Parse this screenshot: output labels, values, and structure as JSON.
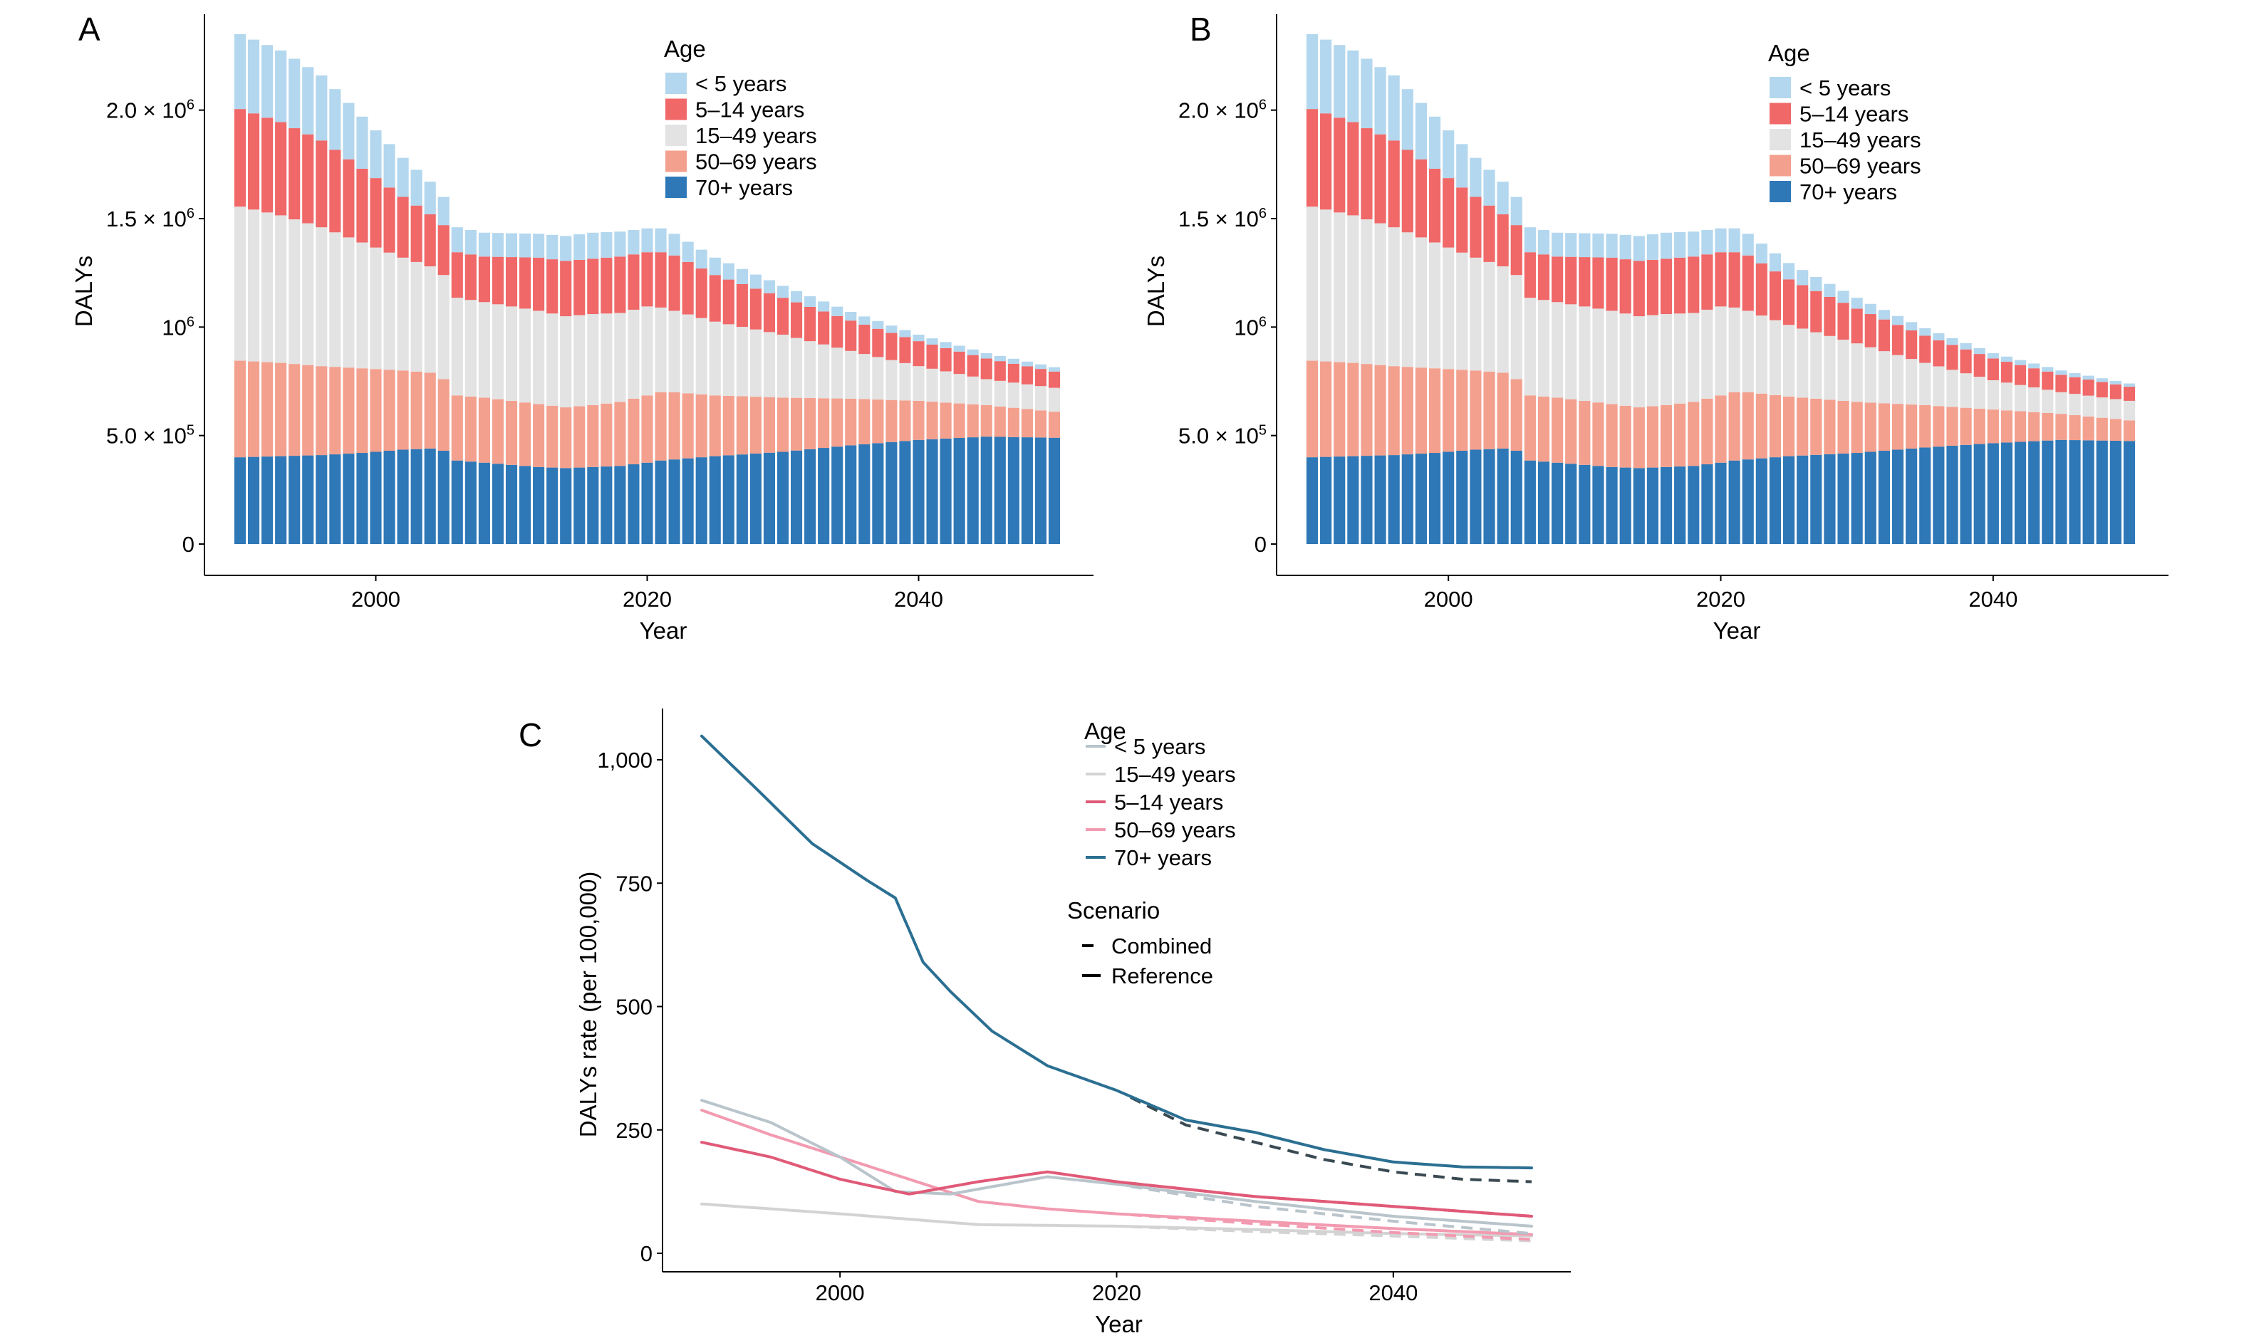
{
  "chart_data": [
    {
      "type": "bar",
      "stacked": true,
      "panel": "A",
      "xlabel": "Year",
      "ylabel": "DALYs",
      "xlim": [
        1990,
        2050
      ],
      "ylim": [
        0,
        2350000
      ],
      "x_ticks": [
        "2000",
        "2020",
        "2040"
      ],
      "y_ticks": [
        "0",
        "5.0 × 10|5",
        "10|6",
        "1.5 × 10|6",
        "2.0 × 10|6"
      ],
      "legend_title": "Age",
      "legend_position": "top-right",
      "legend_labels": [
        "< 5 years",
        "5–14 years",
        "15–49 years",
        "50–69 years",
        "70+ years"
      ],
      "stack_order": [
        "70+ years",
        "50–69 years",
        "15–49 years",
        "5–14 years",
        "< 5 years"
      ],
      "colors": {
        "70+ years": "#2e78b7",
        "50–69 years": "#f4a08e",
        "15–49 years": "#e3e3e3",
        "5–14 years": "#f06868",
        "< 5 years": "#b3d7ee"
      },
      "categories": [
        1990,
        1991,
        1992,
        1993,
        1994,
        1995,
        1996,
        1997,
        1998,
        1999,
        2000,
        2001,
        2002,
        2003,
        2004,
        2005,
        2006,
        2007,
        2008,
        2009,
        2010,
        2011,
        2012,
        2013,
        2014,
        2015,
        2016,
        2017,
        2018,
        2019,
        2020,
        2021,
        2022,
        2023,
        2024,
        2025,
        2026,
        2027,
        2028,
        2029,
        2030,
        2031,
        2032,
        2033,
        2034,
        2035,
        2036,
        2037,
        2038,
        2039,
        2040,
        2041,
        2042,
        2043,
        2044,
        2045,
        2046,
        2047,
        2048,
        2049,
        2050
      ],
      "anchors": {
        "x": [
          1990,
          1993,
          1996,
          1999,
          2002,
          2004,
          2005,
          2006,
          2008,
          2012,
          2014,
          2016,
          2018,
          2020,
          2021,
          2022,
          2025,
          2030,
          2035,
          2040,
          2045,
          2050
        ],
        "70+ years": [
          400000,
          405000,
          410000,
          420000,
          435000,
          440000,
          430000,
          385000,
          375000,
          355000,
          350000,
          355000,
          360000,
          375000,
          385000,
          390000,
          405000,
          425000,
          455000,
          480000,
          495000,
          490000
        ],
        "50–69 years": [
          445000,
          430000,
          410000,
          390000,
          365000,
          350000,
          330000,
          300000,
          300000,
          290000,
          280000,
          285000,
          295000,
          310000,
          315000,
          310000,
          280000,
          250000,
          215000,
          180000,
          145000,
          120000
        ],
        "15–49 years": [
          710000,
          680000,
          640000,
          580000,
          520000,
          490000,
          480000,
          450000,
          440000,
          430000,
          420000,
          420000,
          410000,
          410000,
          390000,
          375000,
          340000,
          290000,
          220000,
          160000,
          120000,
          110000
        ],
        "5–14 years": [
          450000,
          430000,
          400000,
          340000,
          280000,
          240000,
          230000,
          210000,
          210000,
          245000,
          255000,
          255000,
          260000,
          250000,
          255000,
          255000,
          215000,
          170000,
          140000,
          115000,
          95000,
          75000
        ],
        "< 5 years": [
          345000,
          330000,
          300000,
          240000,
          180000,
          150000,
          130000,
          115000,
          110000,
          110000,
          115000,
          120000,
          115000,
          110000,
          110000,
          100000,
          80000,
          55000,
          40000,
          30000,
          25000,
          20000
        ]
      }
    },
    {
      "type": "bar",
      "stacked": true,
      "panel": "B",
      "xlabel": "Year",
      "ylabel": "DALYs",
      "xlim": [
        1990,
        2050
      ],
      "ylim": [
        0,
        2350000
      ],
      "x_ticks": [
        "2000",
        "2020",
        "2040"
      ],
      "y_ticks": [
        "0",
        "5.0 × 10|5",
        "10|6",
        "1.5 × 10|6",
        "2.0 × 10|6"
      ],
      "legend_title": "Age",
      "legend_position": "top-right",
      "legend_labels": [
        "< 5 years",
        "5–14 years",
        "15–49 years",
        "50–69 years",
        "70+ years"
      ],
      "stack_order": [
        "70+ years",
        "50–69 years",
        "15–49 years",
        "5–14 years",
        "< 5 years"
      ],
      "colors": {
        "70+ years": "#2e78b7",
        "50–69 years": "#f4a08e",
        "15–49 years": "#e3e3e3",
        "5–14 years": "#f06868",
        "< 5 years": "#b3d7ee"
      },
      "categories": [
        1990,
        1991,
        1992,
        1993,
        1994,
        1995,
        1996,
        1997,
        1998,
        1999,
        2000,
        2001,
        2002,
        2003,
        2004,
        2005,
        2006,
        2007,
        2008,
        2009,
        2010,
        2011,
        2012,
        2013,
        2014,
        2015,
        2016,
        2017,
        2018,
        2019,
        2020,
        2021,
        2022,
        2023,
        2024,
        2025,
        2026,
        2027,
        2028,
        2029,
        2030,
        2031,
        2032,
        2033,
        2034,
        2035,
        2036,
        2037,
        2038,
        2039,
        2040,
        2041,
        2042,
        2043,
        2044,
        2045,
        2046,
        2047,
        2048,
        2049,
        2050
      ],
      "anchors": {
        "x": [
          1990,
          1993,
          1996,
          1999,
          2002,
          2004,
          2005,
          2006,
          2008,
          2012,
          2014,
          2016,
          2018,
          2020,
          2021,
          2022,
          2025,
          2030,
          2035,
          2040,
          2045,
          2050
        ],
        "70+ years": [
          400000,
          405000,
          410000,
          420000,
          435000,
          440000,
          430000,
          385000,
          375000,
          355000,
          350000,
          355000,
          360000,
          375000,
          385000,
          390000,
          405000,
          420000,
          445000,
          465000,
          480000,
          475000
        ],
        "50–69 years": [
          445000,
          430000,
          410000,
          390000,
          365000,
          350000,
          330000,
          300000,
          300000,
          290000,
          280000,
          285000,
          295000,
          310000,
          315000,
          310000,
          275000,
          235000,
          195000,
          155000,
          120000,
          95000
        ],
        "15–49 years": [
          710000,
          680000,
          640000,
          580000,
          520000,
          490000,
          480000,
          450000,
          440000,
          430000,
          420000,
          420000,
          410000,
          410000,
          390000,
          375000,
          330000,
          270000,
          195000,
          135000,
          100000,
          90000
        ],
        "5–14 years": [
          450000,
          430000,
          400000,
          340000,
          280000,
          240000,
          230000,
          210000,
          210000,
          245000,
          255000,
          255000,
          260000,
          250000,
          255000,
          255000,
          210000,
          160000,
          125000,
          100000,
          80000,
          65000
        ],
        "< 5 years": [
          345000,
          330000,
          300000,
          240000,
          180000,
          150000,
          130000,
          115000,
          110000,
          110000,
          115000,
          120000,
          115000,
          110000,
          110000,
          100000,
          75000,
          50000,
          35000,
          25000,
          20000,
          15000
        ]
      }
    },
    {
      "type": "line",
      "panel": "C",
      "xlabel": "Year",
      "ylabel": "DALYs rate (per 100,000)",
      "xlim": [
        1990,
        2050
      ],
      "ylim": [
        0,
        1050
      ],
      "x_ticks": [
        2000,
        2020,
        2040
      ],
      "y_ticks": [
        0,
        250,
        500,
        750,
        1000
      ],
      "y_tick_labels": [
        "0",
        "250",
        "500",
        "750",
        "1,000"
      ],
      "legend_title": "Age",
      "legend_position": "top-right",
      "scenario_title": "Scenario",
      "scenario_labels": [
        "Combined",
        "Reference"
      ],
      "series": [
        {
          "name": "< 5 years",
          "color": "#b9c4cb",
          "x": [
            1990,
            1995,
            2000,
            2004,
            2008,
            2015,
            2020,
            2030,
            2040,
            2050
          ],
          "reference": [
            310,
            265,
            195,
            125,
            120,
            155,
            140,
            105,
            75,
            55
          ],
          "combined": [
            310,
            265,
            195,
            125,
            120,
            155,
            140,
            95,
            65,
            40
          ]
        },
        {
          "name": "15–49 years",
          "color": "#d3d3d3",
          "x": [
            1990,
            2000,
            2010,
            2020,
            2030,
            2040,
            2050
          ],
          "reference": [
            100,
            80,
            58,
            55,
            48,
            40,
            35
          ],
          "combined": [
            100,
            80,
            58,
            55,
            44,
            35,
            25
          ]
        },
        {
          "name": "5–14 years",
          "color": "#e05a77",
          "x": [
            1990,
            1995,
            2000,
            2005,
            2010,
            2015,
            2020,
            2030,
            2040,
            2050
          ],
          "reference": [
            225,
            195,
            150,
            120,
            145,
            165,
            145,
            115,
            95,
            75
          ],
          "combined": [
            225,
            195,
            150,
            120,
            145,
            165,
            145,
            115,
            95,
            75
          ]
        },
        {
          "name": "50–69 years",
          "color": "#f29ab0",
          "x": [
            1990,
            1995,
            2000,
            2005,
            2010,
            2015,
            2020,
            2030,
            2040,
            2050
          ],
          "reference": [
            290,
            240,
            195,
            150,
            105,
            90,
            80,
            65,
            50,
            38
          ],
          "combined": [
            290,
            240,
            195,
            150,
            105,
            90,
            80,
            60,
            42,
            28
          ]
        },
        {
          "name": "70+ years",
          "color": "#2b6f92",
          "x": [
            1990,
            1994,
            1998,
            2002,
            2004,
            2006,
            2008,
            2011,
            2015,
            2020,
            2025,
            2030,
            2035,
            2040,
            2045,
            2050
          ],
          "reference": [
            1048,
            940,
            830,
            755,
            720,
            590,
            530,
            450,
            380,
            330,
            270,
            245,
            210,
            185,
            175,
            173
          ],
          "combined": [
            1048,
            940,
            830,
            755,
            720,
            590,
            530,
            450,
            380,
            330,
            260,
            225,
            190,
            165,
            150,
            145
          ]
        }
      ]
    }
  ],
  "labels": {
    "panel_a": "A",
    "panel_b": "B",
    "panel_c": "C"
  }
}
